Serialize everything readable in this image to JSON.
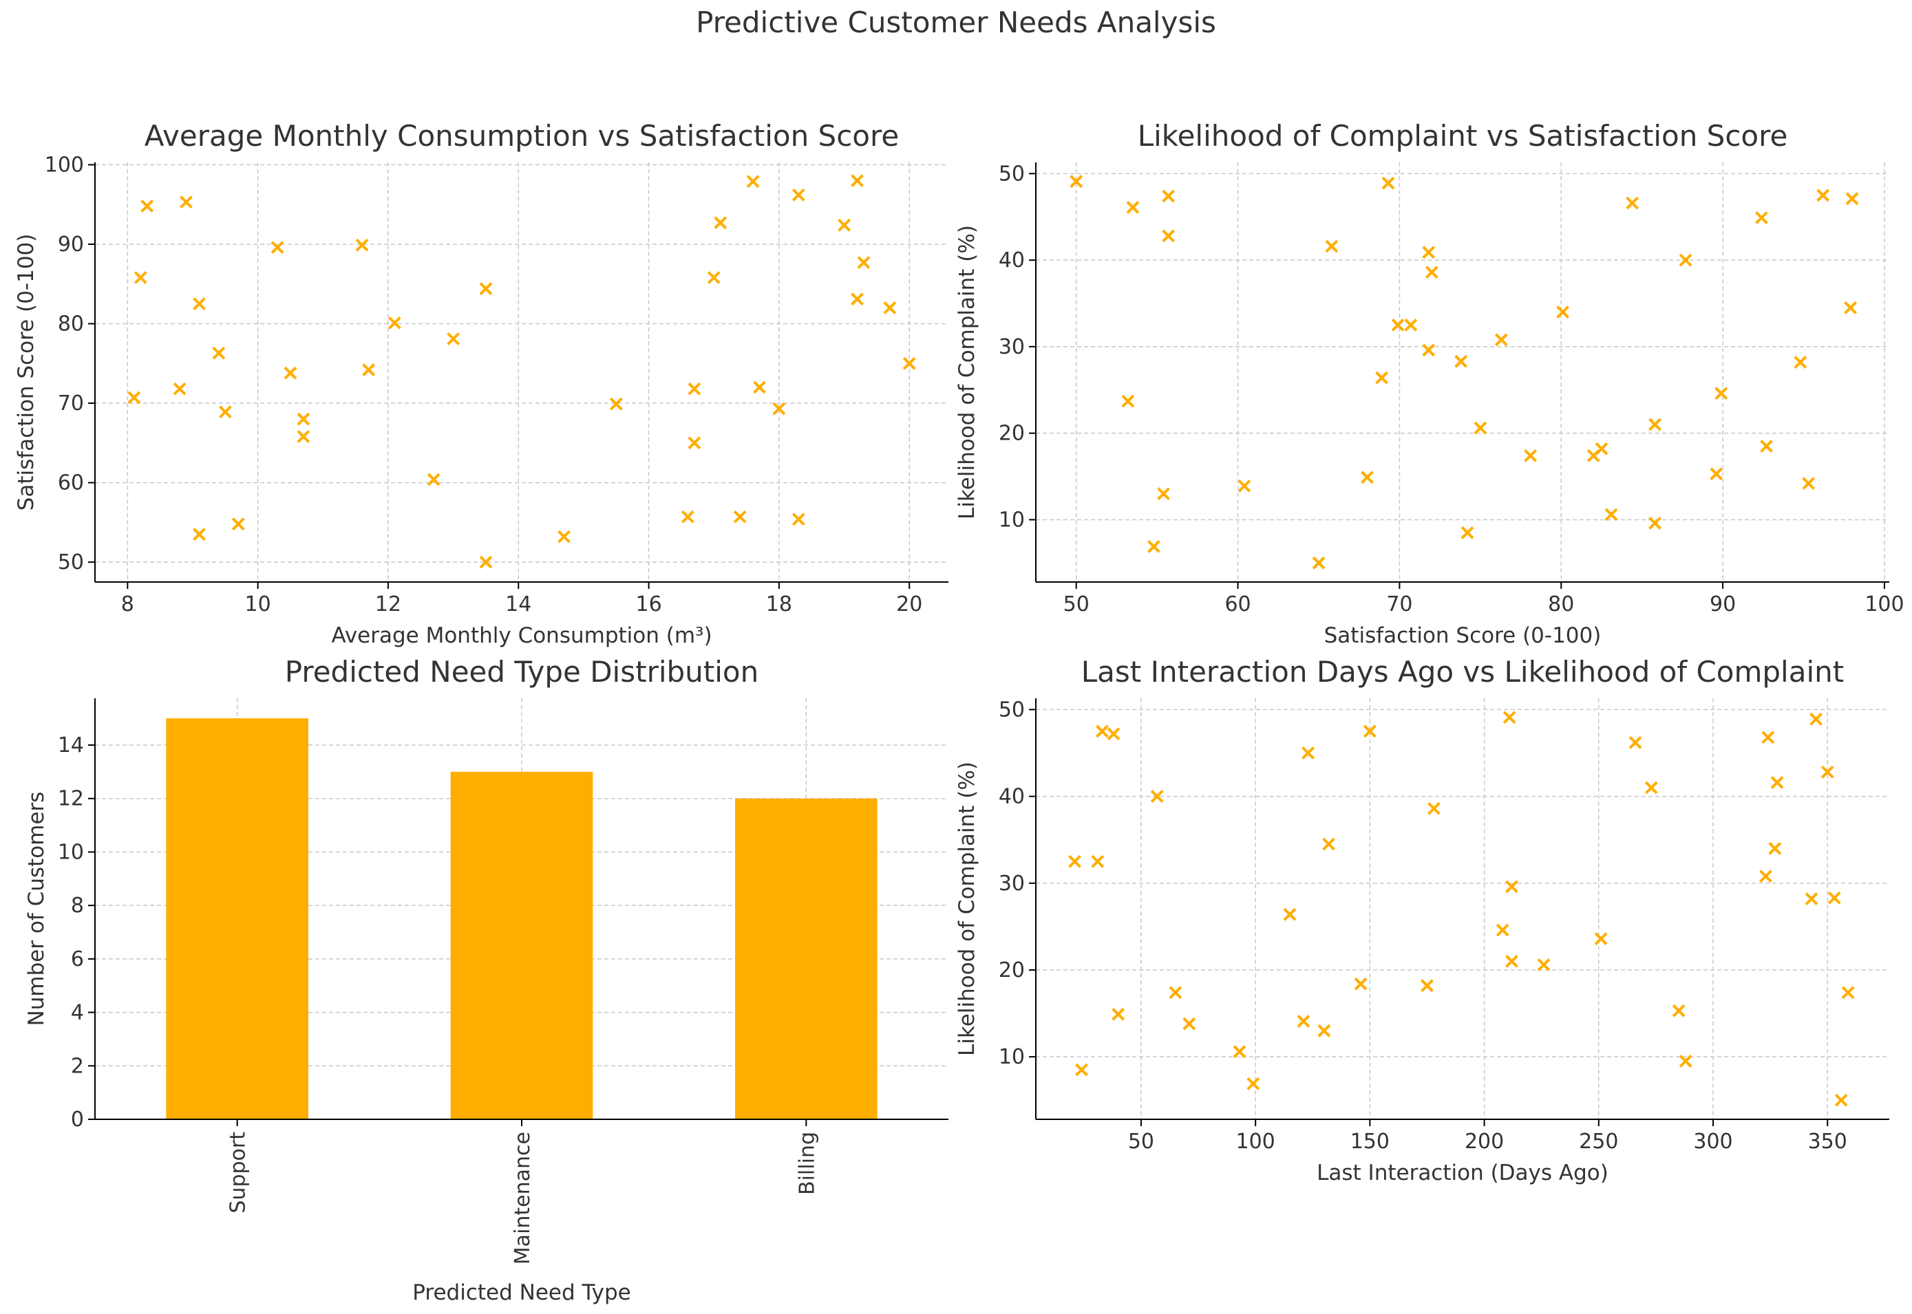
{
  "figure": {
    "suptitle": "Predictive Customer Needs Analysis",
    "accent_color": "#FFAE00",
    "grid_color": "#c8c8c8",
    "text_color": "#333333"
  },
  "chart_data": [
    {
      "id": "consumption_vs_satisfaction",
      "type": "scatter",
      "title": "Average Monthly Consumption vs Satisfaction Score",
      "xlabel": "Average Monthly Consumption (m³)",
      "ylabel": "Satisfaction Score (0-100)",
      "xlim": [
        7.5,
        20.6
      ],
      "ylim": [
        47.5,
        100.3
      ],
      "xticks": [
        8,
        10,
        12,
        14,
        16,
        18,
        20
      ],
      "yticks": [
        50,
        60,
        70,
        80,
        90,
        100
      ],
      "grid": true,
      "marker": "x",
      "color": "#FFAE00",
      "points": [
        [
          8.1,
          70.7
        ],
        [
          8.2,
          85.8
        ],
        [
          8.3,
          94.8
        ],
        [
          8.8,
          71.8
        ],
        [
          8.9,
          95.3
        ],
        [
          9.1,
          53.5
        ],
        [
          9.1,
          82.5
        ],
        [
          9.4,
          76.3
        ],
        [
          9.5,
          68.9
        ],
        [
          9.7,
          54.8
        ],
        [
          10.3,
          89.6
        ],
        [
          10.5,
          73.8
        ],
        [
          10.7,
          68.0
        ],
        [
          10.7,
          65.8
        ],
        [
          11.6,
          89.9
        ],
        [
          11.7,
          74.2
        ],
        [
          12.1,
          80.1
        ],
        [
          12.7,
          60.4
        ],
        [
          13.0,
          78.1
        ],
        [
          13.5,
          84.4
        ],
        [
          13.5,
          50.0
        ],
        [
          14.7,
          53.2
        ],
        [
          15.5,
          69.9
        ],
        [
          16.6,
          55.7
        ],
        [
          16.7,
          65.0
        ],
        [
          16.7,
          71.8
        ],
        [
          17.0,
          85.8
        ],
        [
          17.1,
          92.7
        ],
        [
          17.4,
          55.7
        ],
        [
          17.6,
          97.9
        ],
        [
          17.7,
          72.0
        ],
        [
          18.0,
          69.3
        ],
        [
          18.3,
          55.4
        ],
        [
          18.3,
          96.2
        ],
        [
          19.0,
          92.4
        ],
        [
          19.2,
          98.0
        ],
        [
          19.2,
          83.1
        ],
        [
          19.3,
          87.7
        ],
        [
          19.7,
          82.0
        ],
        [
          20.0,
          75.0
        ]
      ]
    },
    {
      "id": "complaint_vs_satisfaction",
      "type": "scatter",
      "title": "Likelihood of Complaint vs Satisfaction Score",
      "xlabel": "Satisfaction Score (0-100)",
      "ylabel": "Likelihood of Complaint (%)",
      "xlim": [
        47.5,
        100.3
      ],
      "ylim": [
        2.8,
        51.3
      ],
      "xticks": [
        50,
        60,
        70,
        80,
        90,
        100
      ],
      "yticks": [
        10,
        20,
        30,
        40,
        50
      ],
      "grid": true,
      "marker": "x",
      "color": "#FFAE00",
      "points": [
        [
          50.0,
          49.1
        ],
        [
          53.2,
          23.7
        ],
        [
          53.5,
          46.1
        ],
        [
          54.8,
          6.9
        ],
        [
          55.4,
          13.0
        ],
        [
          55.7,
          47.4
        ],
        [
          55.7,
          42.8
        ],
        [
          60.4,
          13.9
        ],
        [
          65.0,
          5.0
        ],
        [
          65.8,
          41.6
        ],
        [
          68.0,
          14.9
        ],
        [
          68.9,
          26.4
        ],
        [
          69.3,
          48.9
        ],
        [
          69.9,
          32.5
        ],
        [
          70.7,
          32.5
        ],
        [
          71.8,
          29.6
        ],
        [
          71.8,
          40.9
        ],
        [
          72.0,
          38.6
        ],
        [
          73.8,
          28.3
        ],
        [
          74.2,
          8.5
        ],
        [
          75.0,
          20.6
        ],
        [
          76.3,
          30.8
        ],
        [
          78.1,
          17.4
        ],
        [
          80.1,
          34.0
        ],
        [
          82.0,
          17.4
        ],
        [
          82.5,
          18.2
        ],
        [
          83.1,
          10.6
        ],
        [
          84.4,
          46.6
        ],
        [
          85.8,
          21.0
        ],
        [
          85.8,
          9.6
        ],
        [
          87.7,
          40.0
        ],
        [
          89.6,
          15.3
        ],
        [
          89.9,
          24.6
        ],
        [
          92.4,
          44.9
        ],
        [
          92.7,
          18.5
        ],
        [
          94.8,
          28.2
        ],
        [
          95.3,
          14.2
        ],
        [
          96.2,
          47.5
        ],
        [
          97.9,
          34.5
        ],
        [
          98.0,
          47.1
        ]
      ]
    },
    {
      "id": "need_type_distribution",
      "type": "bar",
      "title": "Predicted Need Type Distribution",
      "xlabel": "Predicted Need Type",
      "ylabel": "Number of Customers",
      "categories": [
        "Support",
        "Maintenance",
        "Billing"
      ],
      "values": [
        15,
        13,
        12
      ],
      "ylim": [
        0,
        15.75
      ],
      "yticks": [
        0,
        2,
        4,
        6,
        8,
        10,
        12,
        14
      ],
      "grid": true,
      "color": "#FFAE00",
      "tick_label_rotation": 90
    },
    {
      "id": "days_vs_complaint",
      "type": "scatter",
      "title": "Last Interaction Days Ago vs Likelihood of Complaint",
      "xlabel": "Last Interaction (Days Ago)",
      "ylabel": "Likelihood of Complaint (%)",
      "xlim": [
        4,
        377
      ],
      "ylim": [
        2.8,
        51.3
      ],
      "xticks": [
        50,
        100,
        150,
        200,
        250,
        300,
        350
      ],
      "yticks": [
        10,
        20,
        30,
        40,
        50
      ],
      "grid": true,
      "marker": "x",
      "color": "#FFAE00",
      "points": [
        [
          21,
          32.5
        ],
        [
          24,
          8.5
        ],
        [
          31,
          32.5
        ],
        [
          33,
          47.5
        ],
        [
          38,
          47.2
        ],
        [
          40,
          14.9
        ],
        [
          57,
          40.0
        ],
        [
          65,
          17.4
        ],
        [
          71,
          13.8
        ],
        [
          93,
          10.6
        ],
        [
          99,
          6.9
        ],
        [
          115,
          26.4
        ],
        [
          121,
          14.1
        ],
        [
          123,
          45.0
        ],
        [
          130,
          13.0
        ],
        [
          132,
          34.5
        ],
        [
          146,
          18.4
        ],
        [
          150,
          47.5
        ],
        [
          175,
          18.2
        ],
        [
          178,
          38.6
        ],
        [
          208,
          24.6
        ],
        [
          211,
          49.1
        ],
        [
          212,
          29.6
        ],
        [
          212,
          21.0
        ],
        [
          226,
          20.6
        ],
        [
          251,
          23.6
        ],
        [
          266,
          46.2
        ],
        [
          273,
          41.0
        ],
        [
          285,
          15.3
        ],
        [
          288,
          9.5
        ],
        [
          323,
          30.8
        ],
        [
          324,
          46.8
        ],
        [
          328,
          41.6
        ],
        [
          327,
          34.0
        ],
        [
          343,
          28.2
        ],
        [
          345,
          48.9
        ],
        [
          350,
          42.8
        ],
        [
          353,
          28.3
        ],
        [
          356,
          5.0
        ],
        [
          359,
          17.4
        ]
      ]
    }
  ]
}
